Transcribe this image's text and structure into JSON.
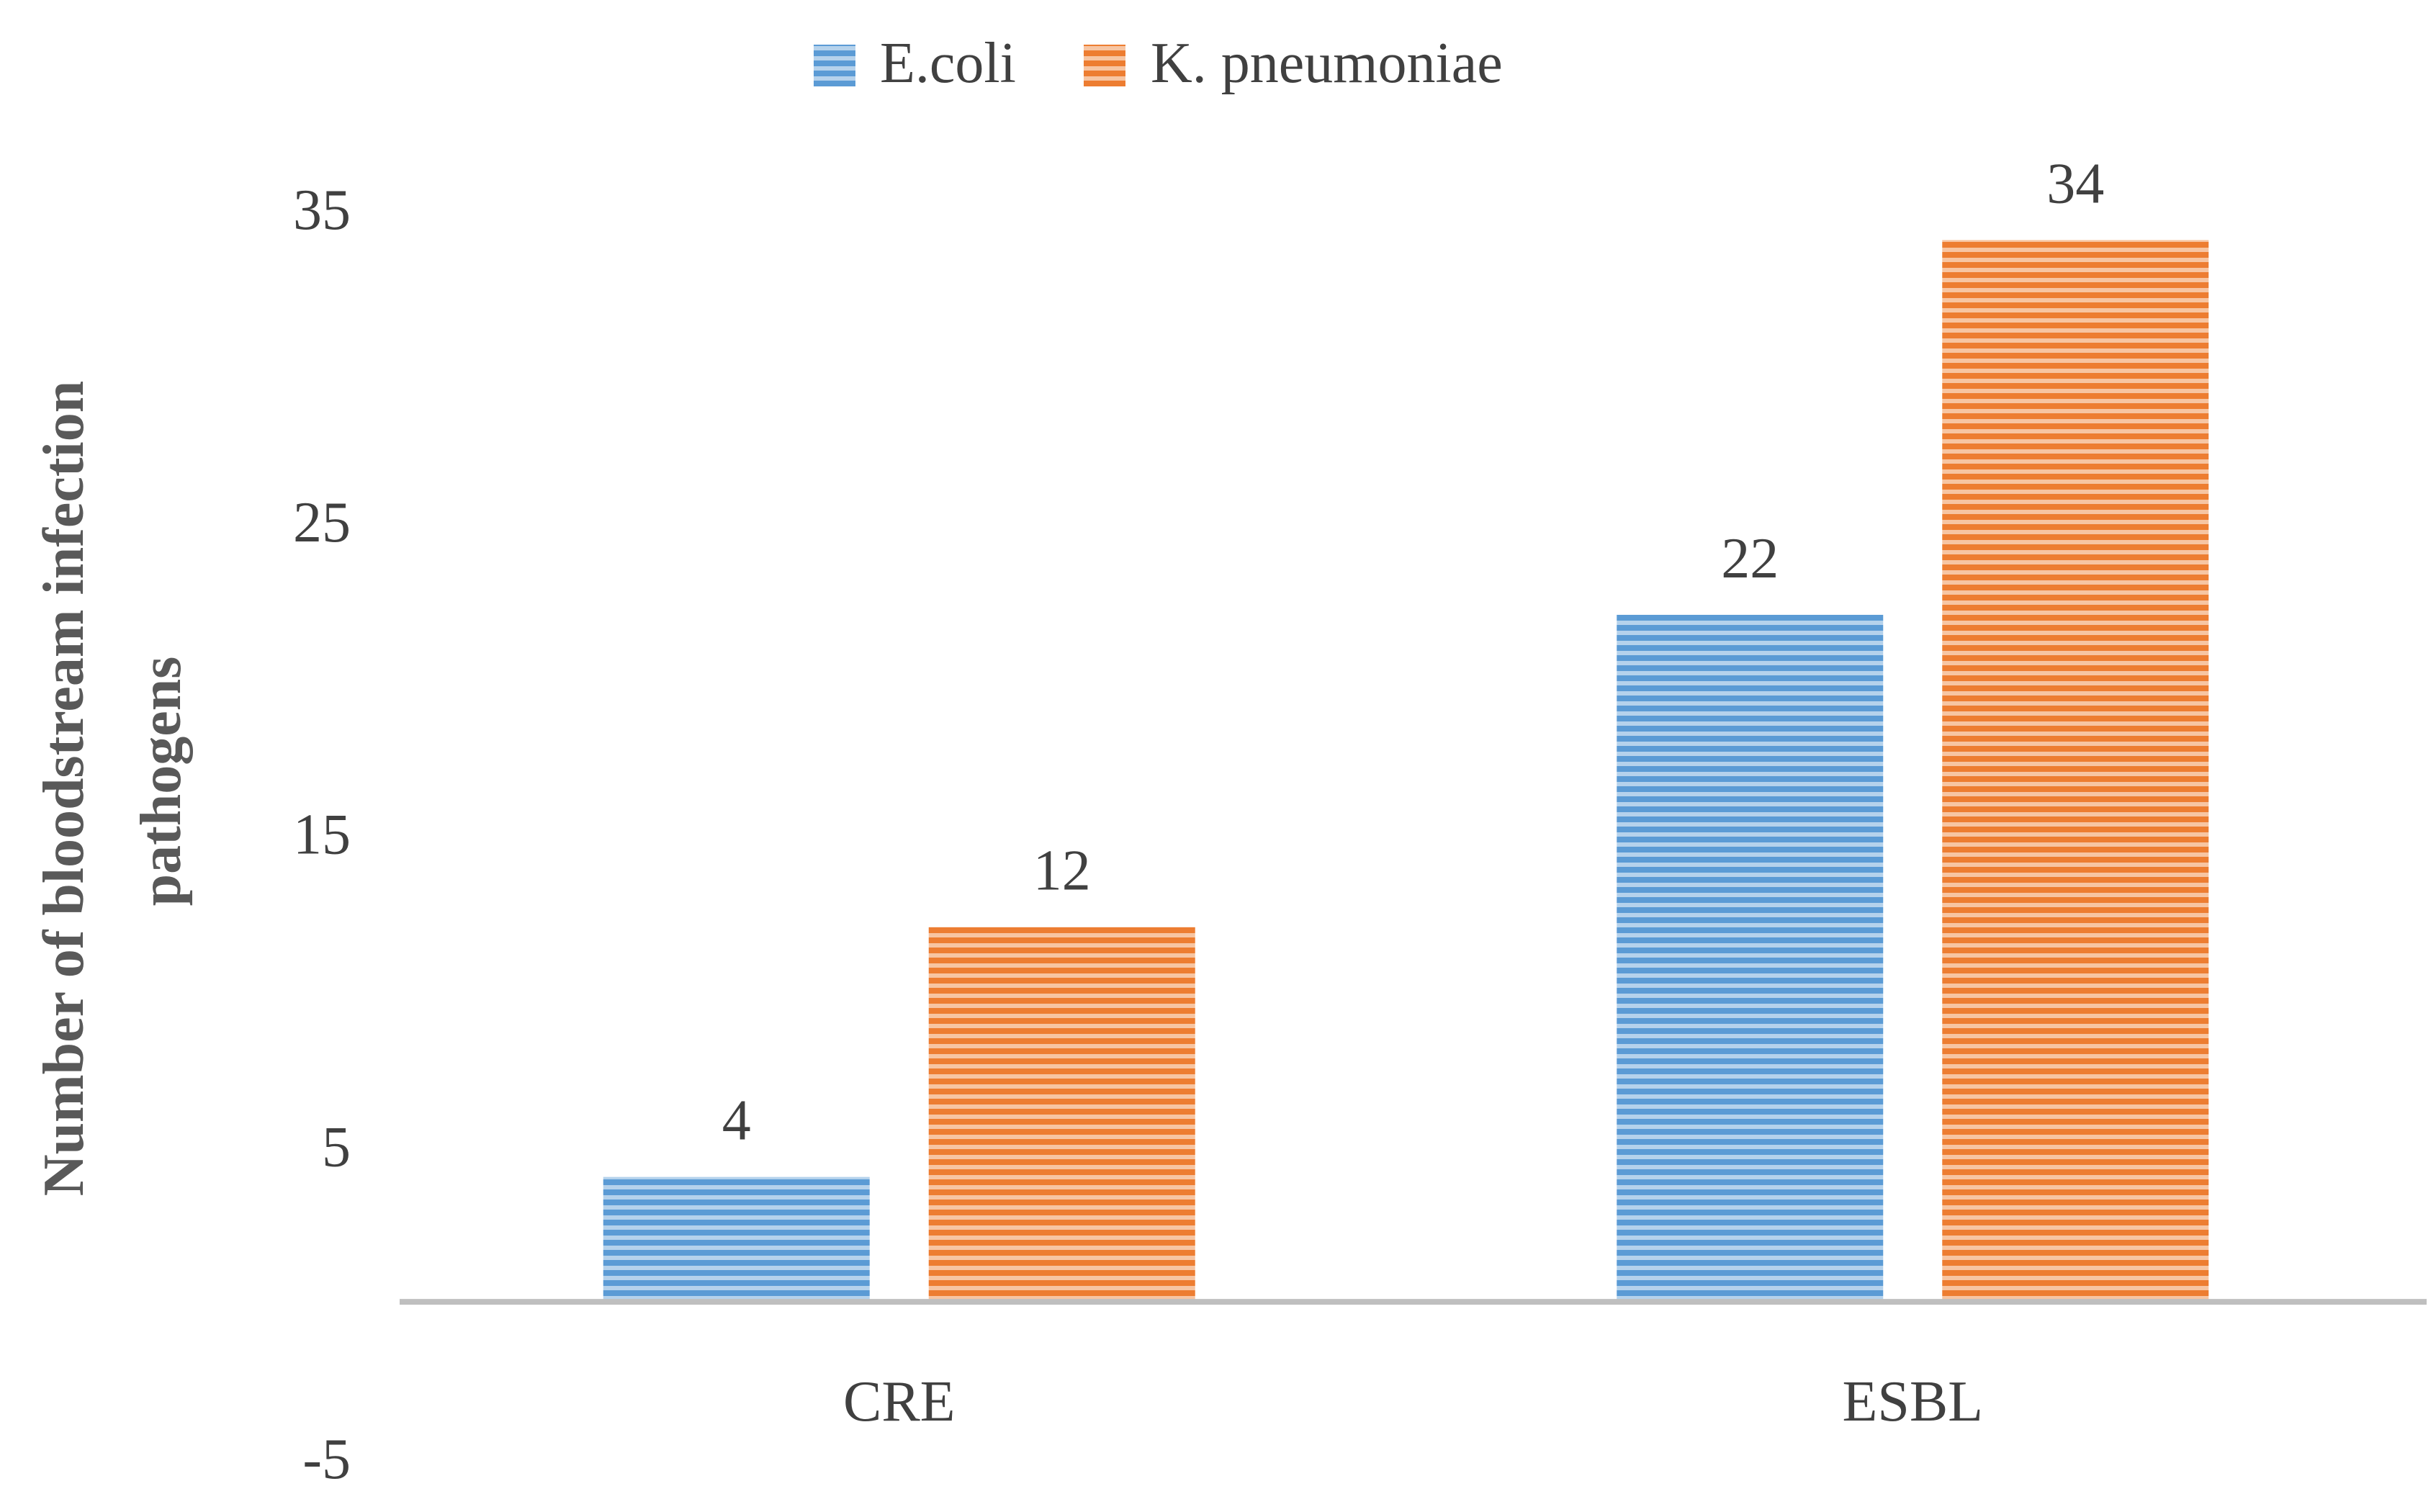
{
  "chart_data": {
    "type": "bar",
    "categories": [
      "CRE",
      "ESBL"
    ],
    "series": [
      {
        "name": "E.coli",
        "color": "#5B9BD5",
        "values": [
          4,
          22
        ]
      },
      {
        "name": "K. pneumoniae",
        "color": "#ED7D31",
        "values": [
          12,
          34
        ]
      }
    ],
    "title": "",
    "xlabel": "",
    "ylabel_lines": [
      "Number of bloodstream infection",
      "pathogens"
    ],
    "yticks": [
      35,
      25,
      15,
      5,
      -5
    ],
    "ylim": [
      -5,
      35
    ],
    "data_labels": true,
    "grid": false,
    "legend_position": "top-center",
    "bar_pattern": "horizontal-stripes",
    "axis_color": "#BFBFBF"
  }
}
